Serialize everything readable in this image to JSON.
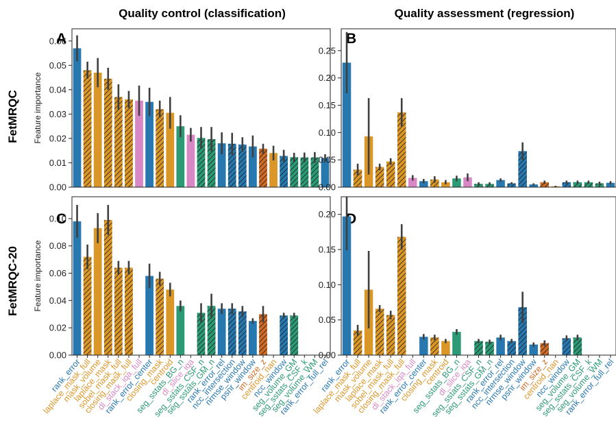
{
  "figure": {
    "col_titles": [
      "Quality control (classification)",
      "Quality assessment (regression)"
    ],
    "row_titles": [
      "FetMRQC",
      "FetMRQC-20"
    ]
  },
  "colors": {
    "blue": "#2878b0",
    "orange": "#db9628",
    "pink": "#d889c5",
    "green": "#2c9a74",
    "rust": "#cf6b25",
    "error_bar": "#3f3f3f"
  },
  "chart_data": [
    {
      "panel": "A",
      "type": "bar",
      "ylabel": "Feature importance",
      "ylim": [
        0,
        0.065
      ],
      "yticks": [
        0.0,
        0.01,
        0.02,
        0.03,
        0.04,
        0.05,
        0.06
      ],
      "categories": [
        "rank_error",
        "laplace_mask_full",
        "mask_volume",
        "laplace_mask",
        "sobel_mask_full",
        "closing_mask_full",
        "dl_stack_iqa_full",
        "rank_error_center",
        "closing_mask",
        "centroid",
        "seg_sstats_BG_n",
        "dl_slice_iqa",
        "seg_sstats_CSF_n",
        "seg_sstats_GM_n",
        "rank_error_rel",
        "ncc_intersection",
        "nrmse_window",
        "psnr_window",
        "im_size_z",
        "centroid_nan",
        "ncc_window",
        "seg_volume_GM",
        "seg_sstats_CSF_k",
        "seg_volume_WM",
        "rank_error_full_rel"
      ],
      "values": [
        0.057,
        0.048,
        0.047,
        0.0445,
        0.037,
        0.036,
        0.0355,
        0.035,
        0.032,
        0.0305,
        0.025,
        0.0215,
        0.0202,
        0.0197,
        0.018,
        0.0178,
        0.0175,
        0.0167,
        0.0158,
        0.014,
        0.0128,
        0.0123,
        0.0122,
        0.0122,
        0.012
      ],
      "errors": [
        0.0053,
        0.0035,
        0.006,
        0.0045,
        0.0052,
        0.0035,
        0.0062,
        0.0058,
        0.0035,
        0.0065,
        0.0045,
        0.0028,
        0.0045,
        0.005,
        0.0045,
        0.0045,
        0.003,
        0.0045,
        0.002,
        0.003,
        0.0025,
        0.0018,
        0.002,
        0.0022,
        0.0015
      ],
      "colors": [
        "blue",
        "orange",
        "orange",
        "orange",
        "orange",
        "orange",
        "pink",
        "blue",
        "orange",
        "orange",
        "green",
        "pink",
        "green",
        "green",
        "blue",
        "blue",
        "blue",
        "blue",
        "rust",
        "orange",
        "blue",
        "green",
        "green",
        "green",
        "blue"
      ],
      "hatched": [
        false,
        true,
        false,
        true,
        true,
        true,
        false,
        false,
        true,
        false,
        false,
        false,
        true,
        true,
        false,
        true,
        true,
        false,
        true,
        false,
        true,
        true,
        true,
        true,
        false
      ]
    },
    {
      "panel": "B",
      "type": "bar",
      "ylim": [
        0,
        0.29
      ],
      "yticks": [
        0.0,
        0.05,
        0.1,
        0.15,
        0.2,
        0.25
      ],
      "categories": [
        "rank_error",
        "laplace_mask_full",
        "mask_volume",
        "laplace_mask",
        "sobel_mask_full",
        "closing_mask_full",
        "dl_stack_iqa_full",
        "rank_error_center",
        "closing_mask",
        "centroid",
        "seg_sstats_BG_n",
        "dl_slice_iqa",
        "seg_sstats_CSF_n",
        "seg_sstats_GM_n",
        "rank_error_rel",
        "ncc_intersection",
        "nrmse_window",
        "psnr_window",
        "im_size_z",
        "centroid_nan",
        "ncc_window",
        "seg_volume_GM",
        "seg_sstats_CSF_k",
        "seg_volume_WM",
        "rank_error_full_rel"
      ],
      "values": [
        0.228,
        0.032,
        0.093,
        0.037,
        0.047,
        0.137,
        0.017,
        0.011,
        0.014,
        0.009,
        0.016,
        0.018,
        0.006,
        0.006,
        0.013,
        0.007,
        0.066,
        0.005,
        0.009,
        0.0015,
        0.009,
        0.009,
        0.009,
        0.007,
        0.008
      ],
      "errors": [
        0.056,
        0.011,
        0.07,
        0.006,
        0.006,
        0.026,
        0.005,
        0.004,
        0.006,
        0.004,
        0.005,
        0.007,
        0.003,
        0.003,
        0.003,
        0.002,
        0.016,
        0.002,
        0.003,
        0.001,
        0.003,
        0.003,
        0.003,
        0.003,
        0.003
      ],
      "colors": [
        "blue",
        "orange",
        "orange",
        "orange",
        "orange",
        "orange",
        "pink",
        "blue",
        "orange",
        "orange",
        "green",
        "pink",
        "green",
        "green",
        "blue",
        "blue",
        "blue",
        "blue",
        "rust",
        "orange",
        "blue",
        "green",
        "green",
        "green",
        "blue"
      ],
      "hatched": [
        false,
        true,
        false,
        true,
        true,
        true,
        false,
        false,
        true,
        false,
        false,
        false,
        true,
        true,
        false,
        true,
        true,
        false,
        true,
        false,
        true,
        true,
        true,
        true,
        false
      ]
    },
    {
      "panel": "C",
      "type": "bar",
      "ylabel": "Feature importance",
      "ylim": [
        0,
        0.116
      ],
      "yticks": [
        0.0,
        0.02,
        0.04,
        0.06,
        0.08,
        0.1
      ],
      "categories": [
        "rank_error",
        "laplace_mask_full",
        "mask_volume",
        "laplace_mask",
        "sobel_mask_full",
        "closing_mask_full",
        "dl_stack_iqa_full",
        "rank_error_center",
        "closing_mask",
        "centroid",
        "seg_sstats_BG_n",
        "dl_slice_iqa",
        "seg_sstats_CSF_n",
        "seg_sstats_GM_n",
        "rank_error_rel",
        "ncc_intersection",
        "nrmse_window",
        "psnr_window",
        "im_size_z",
        "centroid_nan",
        "ncc_window",
        "seg_volume_GM",
        "seg_sstats_CSF_k",
        "seg_volume_WM",
        "rank_error_full_rel"
      ],
      "values": [
        0.098,
        0.072,
        0.093,
        0.099,
        0.064,
        0.064,
        0,
        0.058,
        0.056,
        0.048,
        0.036,
        0,
        0.031,
        0.036,
        0.034,
        0.034,
        0.032,
        0.025,
        0.03,
        0,
        0.029,
        0.029,
        0,
        0,
        0
      ],
      "errors": [
        0.012,
        0.009,
        0.011,
        0.011,
        0.005,
        0.005,
        0,
        0.009,
        0.005,
        0.005,
        0.004,
        0,
        0.007,
        0.009,
        0.004,
        0.004,
        0.004,
        0.002,
        0.006,
        0,
        0.002,
        0.002,
        0,
        0,
        0
      ],
      "colors": [
        "blue",
        "orange",
        "orange",
        "orange",
        "orange",
        "orange",
        "pink",
        "blue",
        "orange",
        "orange",
        "green",
        "pink",
        "green",
        "green",
        "blue",
        "blue",
        "blue",
        "blue",
        "rust",
        "orange",
        "blue",
        "green",
        "green",
        "green",
        "blue"
      ],
      "hatched": [
        false,
        true,
        false,
        true,
        true,
        true,
        false,
        false,
        true,
        false,
        false,
        false,
        true,
        true,
        false,
        true,
        true,
        false,
        true,
        false,
        true,
        true,
        true,
        true,
        false
      ]
    },
    {
      "panel": "D",
      "type": "bar",
      "ylim": [
        0,
        0.225
      ],
      "yticks": [
        0.0,
        0.05,
        0.1,
        0.15,
        0.2
      ],
      "categories": [
        "rank_error",
        "laplace_mask_full",
        "mask_volume",
        "laplace_mask",
        "sobel_mask_full",
        "closing_mask_full",
        "dl_stack_iqa_full",
        "rank_error_center",
        "closing_mask",
        "centroid",
        "seg_sstats_BG_n",
        "dl_slice_iqa",
        "seg_sstats_CSF_n",
        "seg_sstats_GM_n",
        "rank_error_rel",
        "ncc_intersection",
        "nrmse_window",
        "psnr_window",
        "im_size_z",
        "centroid_nan",
        "ncc_window",
        "seg_volume_GM",
        "seg_sstats_CSF_k",
        "seg_volume_WM",
        "rank_error_full_rel"
      ],
      "values": [
        0.197,
        0.035,
        0.093,
        0.066,
        0.057,
        0.168,
        0,
        0.026,
        0.025,
        0.02,
        0.033,
        0,
        0.02,
        0.019,
        0.025,
        0.02,
        0.068,
        0.015,
        0.017,
        0,
        0.024,
        0.025,
        0,
        0,
        0
      ],
      "errors": [
        0.048,
        0.008,
        0.055,
        0.005,
        0.006,
        0.018,
        0,
        0.004,
        0.004,
        0.003,
        0.004,
        0,
        0.003,
        0.003,
        0.004,
        0.003,
        0.022,
        0.003,
        0.004,
        0,
        0.004,
        0.004,
        0,
        0,
        0
      ],
      "colors": [
        "blue",
        "orange",
        "orange",
        "orange",
        "orange",
        "orange",
        "pink",
        "blue",
        "orange",
        "orange",
        "green",
        "pink",
        "green",
        "green",
        "blue",
        "blue",
        "blue",
        "blue",
        "rust",
        "orange",
        "blue",
        "green",
        "green",
        "green",
        "blue"
      ],
      "hatched": [
        false,
        true,
        false,
        true,
        true,
        true,
        false,
        false,
        true,
        false,
        false,
        false,
        true,
        true,
        false,
        true,
        true,
        false,
        true,
        false,
        true,
        true,
        true,
        true,
        false
      ]
    }
  ]
}
